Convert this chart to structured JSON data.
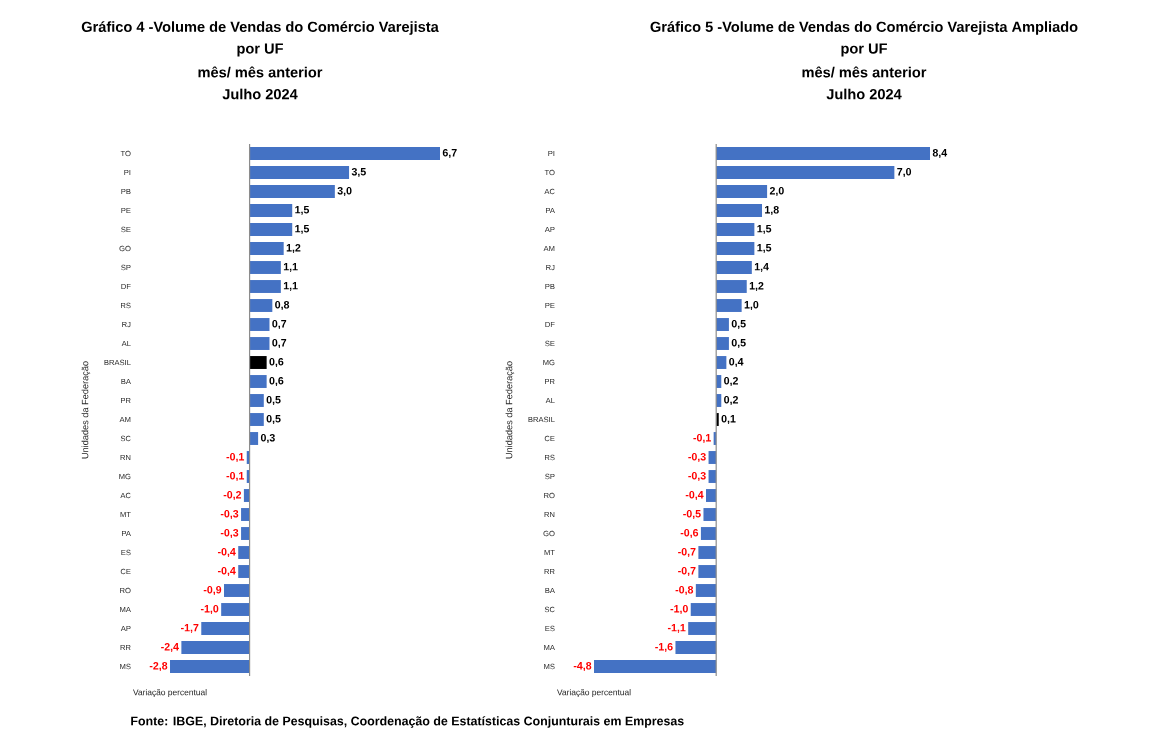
{
  "chart_data": [
    {
      "type": "bar",
      "orientation": "horizontal",
      "title": "Gráfico 4 -Volume de Vendas do Comércio Varejista",
      "subtitle": "por UF",
      "xlabel": "Variação percentual",
      "ylabel": "Unidades da Federação",
      "tick_labels": "y",
      "categories": [
        "TO",
        "PI",
        "PB",
        "PE",
        "SE",
        "GO",
        "SP",
        "DF",
        "RS",
        "RJ",
        "AL",
        "BRASIL",
        "BA",
        "PR",
        "AM",
        "SC",
        "RN",
        "MG",
        "AC",
        "MT",
        "PA",
        "ES",
        "CE",
        "RO",
        "MA",
        "AP",
        "RR",
        "MS"
      ],
      "values": [
        6.7,
        3.5,
        3.0,
        1.5,
        1.5,
        1.2,
        1.1,
        1.1,
        0.8,
        0.7,
        0.7,
        0.6,
        0.6,
        0.5,
        0.5,
        0.3,
        -0.1,
        -0.1,
        -0.2,
        -0.3,
        -0.3,
        -0.4,
        -0.4,
        -0.9,
        -1.0,
        -1.7,
        -2.4,
        -2.8
      ],
      "value_labels": [
        "6,7",
        "3,5",
        "3,0",
        "1,5",
        "1,5",
        "1,2",
        "1,1",
        "1,1",
        "0,8",
        "0,7",
        "0,7",
        "0,6",
        "0,6",
        "0,5",
        "0,5",
        "0,3",
        "-0,1",
        "-0,1",
        "-0,2",
        "-0,3",
        "-0,3",
        "-0,4",
        "-0,4",
        "-0,9",
        "-1,0",
        "-1,7",
        "-2,4",
        "-2,8"
      ],
      "colors": [
        "#4472c4",
        "#4472c4",
        "#4472c4",
        "#4472c4",
        "#4472c4",
        "#4472c4",
        "#4472c4",
        "#4472c4",
        "#4472c4",
        "#4472c4",
        "#4472c4",
        "#000000",
        "#4472c4",
        "#4472c4",
        "#4472c4",
        "#4472c4",
        "#4472c4",
        "#4472c4",
        "#4472c4",
        "#4472c4",
        "#4472c4",
        "#4472c4",
        "#4472c4",
        "#4472c4",
        "#4472c4",
        "#4472c4",
        "#4472c4",
        "#4472c4"
      ],
      "annotations": [
        "mês/ mês anterior",
        "Julho 2024",
        "Fonte: IBGE, Diretoria de Pesquisas, Coordenação de Estatísticas Conjunturais em Empresas"
      ]
    },
    {
      "type": "bar",
      "orientation": "horizontal",
      "title": "Gráfico 5 -Volume de Vendas do Comércio Varejista Ampliado",
      "subtitle": "por UF",
      "xlabel": "Variação percentual",
      "ylabel": "Unidades da Federação",
      "tick_labels": "y",
      "categories": [
        "PI",
        "TO",
        "AC",
        "PA",
        "AP",
        "AM",
        "RJ",
        "PB",
        "PE",
        "DF",
        "SE",
        "MG",
        "PR",
        "AL",
        "BRASIL",
        "CE",
        "RS",
        "SP",
        "RO",
        "RN",
        "GO",
        "MT",
        "RR",
        "BA",
        "SC",
        "ES",
        "MA",
        "MS"
      ],
      "values": [
        8.4,
        7.0,
        2.0,
        1.8,
        1.5,
        1.5,
        1.4,
        1.2,
        1.0,
        0.5,
        0.5,
        0.4,
        0.2,
        0.2,
        0.1,
        -0.1,
        -0.3,
        -0.3,
        -0.4,
        -0.5,
        -0.6,
        -0.7,
        -0.7,
        -0.8,
        -1.0,
        -1.1,
        -1.6,
        -4.8
      ],
      "value_labels": [
        "8,4",
        "7,0",
        "2,0",
        "1,8",
        "1,5",
        "1,5",
        "1,4",
        "1,2",
        "1,0",
        "0,5",
        "0,5",
        "0,4",
        "0,2",
        "0,2",
        "0,1",
        "-0,1",
        "-0,3",
        "-0,3",
        "-0,4",
        "-0,5",
        "-0,6",
        "-0,7",
        "-0,7",
        "-0,8",
        "-1,0",
        "-1,1",
        "-1,6",
        "-4,8"
      ],
      "colors": [
        "#4472c4",
        "#4472c4",
        "#4472c4",
        "#4472c4",
        "#4472c4",
        "#4472c4",
        "#4472c4",
        "#4472c4",
        "#4472c4",
        "#4472c4",
        "#4472c4",
        "#4472c4",
        "#4472c4",
        "#4472c4",
        "#000000",
        "#4472c4",
        "#4472c4",
        "#4472c4",
        "#4472c4",
        "#4472c4",
        "#4472c4",
        "#4472c4",
        "#4472c4",
        "#4472c4",
        "#4472c4",
        "#4472c4",
        "#4472c4",
        "#4472c4"
      ],
      "annotations": [
        "mês/ mês anterior",
        "Julho 2024"
      ]
    }
  ]
}
